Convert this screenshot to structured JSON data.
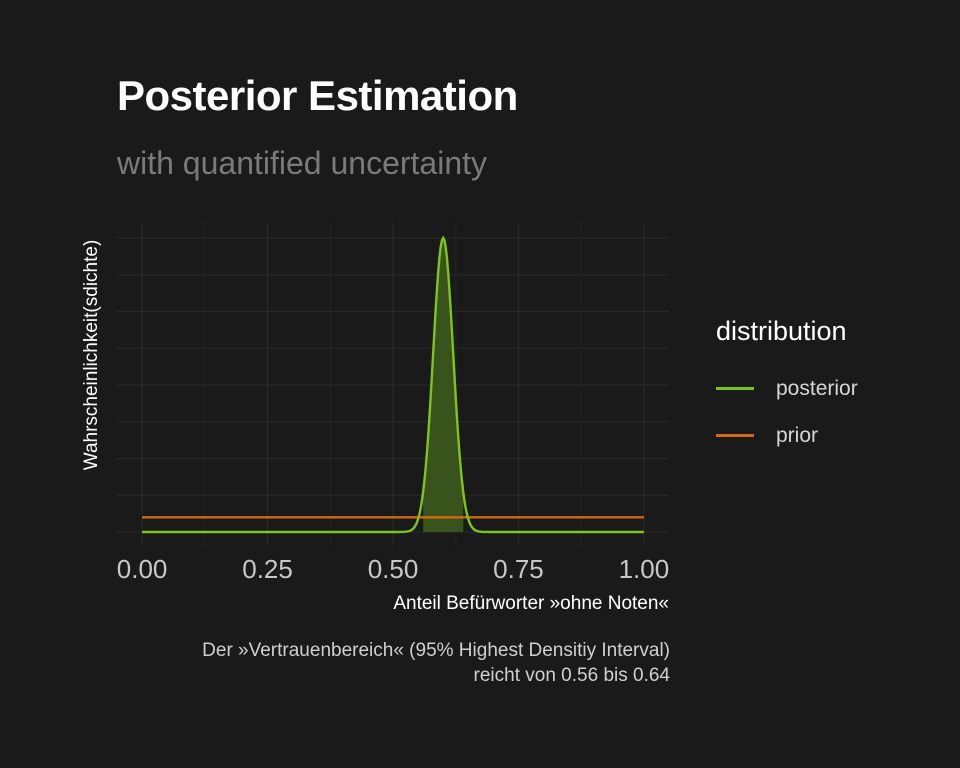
{
  "title": "Posterior Estimation",
  "subtitle": "with quantified uncertainty",
  "caption": {
    "line1": "Der »Vertrauenbereich« (95% Highest Densitiy Interval)",
    "line2": "reicht von  0.56  bis  0.64"
  },
  "legend": {
    "title": "distribution",
    "items": [
      {
        "label": "posterior",
        "color": "#7ec41f"
      },
      {
        "label": "prior",
        "color": "#d2690f"
      }
    ]
  },
  "chart_data": {
    "type": "line",
    "xlabel": "Anteil Befürworter »ohne Noten«",
    "ylabel": "Wahrscheinlichkeit(sdichte)",
    "xlim": [
      0,
      1
    ],
    "x_ticks": [
      "0.00",
      "0.25",
      "0.50",
      "0.75",
      "1.00"
    ],
    "grid": true,
    "legend_position": "right",
    "series": [
      {
        "name": "posterior",
        "color": "#7ec41f",
        "mean": 0.6,
        "sd": 0.02,
        "peak_density": 20.0
      },
      {
        "name": "prior",
        "color": "#d2690f",
        "x": [
          0,
          1
        ],
        "y": [
          1,
          1
        ]
      }
    ],
    "hdi": {
      "low": 0.56,
      "high": 0.64,
      "fill": "#3d5a1e"
    },
    "ylim": [
      0,
      21
    ]
  }
}
